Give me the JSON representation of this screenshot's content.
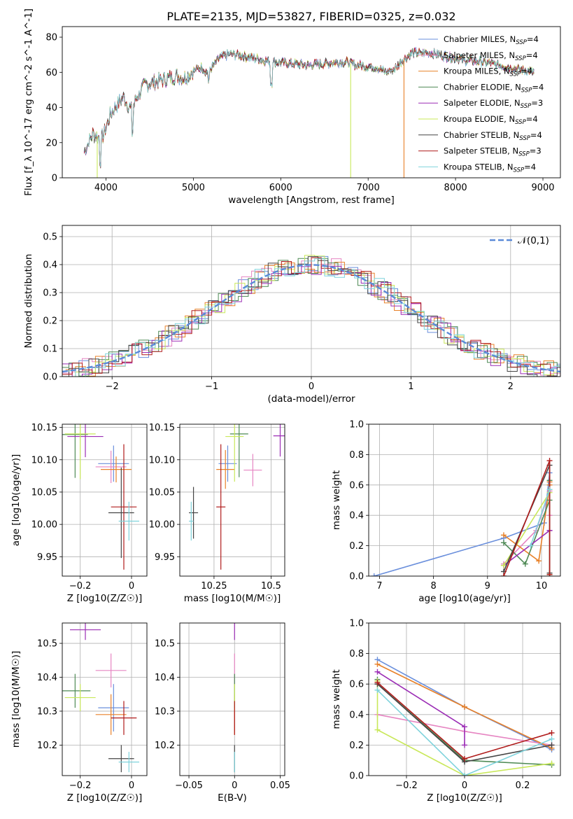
{
  "figure": {
    "title": "PLATE=2135, MJD=53827, FIBERID=0325, z=0.032"
  },
  "colors": {
    "chabrier_miles": "#6a8fdc",
    "salpeter_miles": "#e685c2",
    "kroupa_miles": "#e8822a",
    "chabrier_elodie": "#4e8a55",
    "salpeter_elodie": "#9b2db5",
    "kroupa_elodie": "#c9e85a",
    "chabrier_stelib": "#454545",
    "salpeter_stelib": "#b01c1c",
    "kroupa_stelib": "#7fd3dc",
    "normal_curve": "#5b8ad8"
  },
  "chart_data": [
    {
      "id": "spectrum",
      "type": "line",
      "title": "PLATE=2135, MJD=53827, FIBERID=0325, z=0.032",
      "xlabel": "wavelength [Angstrom, rest frame]",
      "ylabel": "Flux [f_λ 10^-17 erg cm^-2 s^-1 A^-1]",
      "xlim": [
        3500,
        9200
      ],
      "ylim": [
        0,
        86
      ],
      "xticks": [
        4000,
        5000,
        6000,
        7000,
        8000,
        9000
      ],
      "yticks": [
        0,
        20,
        40,
        60,
        80
      ],
      "grid": false,
      "legend_position": "top-right",
      "legend": [
        "Chabrier MILES, N_SSP=4",
        "Salpeter MILES, N_SSP=4",
        "Kroupa MILES, N_SSP=4",
        "Chabrier ELODIE, N_SSP=4",
        "Salpeter ELODIE, N_SSP=3",
        "Kroupa ELODIE, N_SSP=4",
        "Chabrier STELIB, N_SSP=4",
        "Salpeter STELIB, N_SSP=3",
        "Kroupa STELIB, N_SSP=4"
      ],
      "continuum": [
        [
          3750,
          15
        ],
        [
          3800,
          20
        ],
        [
          3850,
          25
        ],
        [
          3950,
          22
        ],
        [
          4000,
          28
        ],
        [
          4050,
          36
        ],
        [
          4100,
          40
        ],
        [
          4200,
          46
        ],
        [
          4300,
          38
        ],
        [
          4350,
          46
        ],
        [
          4450,
          53
        ],
        [
          4600,
          55
        ],
        [
          4800,
          58
        ],
        [
          4900,
          57
        ],
        [
          5000,
          61
        ],
        [
          5100,
          63
        ],
        [
          5150,
          60
        ],
        [
          5200,
          62
        ],
        [
          5300,
          68
        ],
        [
          5400,
          70
        ],
        [
          5500,
          70
        ],
        [
          5700,
          68
        ],
        [
          5900,
          66
        ],
        [
          6100,
          65
        ],
        [
          6300,
          64
        ],
        [
          6500,
          65
        ],
        [
          6700,
          66
        ],
        [
          6900,
          64
        ],
        [
          7100,
          63
        ],
        [
          7200,
          60
        ],
        [
          7300,
          62
        ],
        [
          7400,
          67
        ],
        [
          7500,
          71
        ],
        [
          7700,
          71
        ],
        [
          7900,
          69
        ],
        [
          8100,
          67
        ],
        [
          8300,
          66
        ],
        [
          8500,
          64
        ],
        [
          8700,
          62
        ],
        [
          8900,
          60
        ]
      ],
      "drops": [
        {
          "series": "Kroupa ELODIE, N_SSP=4",
          "x": 3900,
          "y_to": 0
        },
        {
          "series": "Kroupa ELODIE, N_SSP=4",
          "x": 6800,
          "y_to": 0
        },
        {
          "series": "Kroupa MILES, N_SSP=4",
          "x": 7410,
          "y_to": 0
        }
      ]
    },
    {
      "id": "residuals",
      "type": "line",
      "xlabel": "(data-model)/error",
      "ylabel": "Normed distribution",
      "xlim": [
        -2.5,
        2.5
      ],
      "ylim": [
        0,
        0.54
      ],
      "xticks": [
        -2,
        -1,
        0,
        1,
        2
      ],
      "yticks": [
        0.0,
        0.1,
        0.2,
        0.3,
        0.4,
        0.5
      ],
      "grid": true,
      "legend_position": "top-right",
      "curve_label": "𝒩(0,1)",
      "note": "nine step histograms, one per model, scattered around the standard normal curve"
    },
    {
      "id": "age_vs_Z",
      "type": "scatter",
      "xlabel": "Z [log10(Z/Z☉)]",
      "ylabel": "age [log10(age/yr)]",
      "xlim": [
        -0.27,
        0.06
      ],
      "ylim": [
        9.92,
        10.155
      ],
      "xticks": [
        -0.2,
        0.0
      ],
      "yticks": [
        9.95,
        10.0,
        10.05,
        10.1,
        10.15
      ],
      "grid": true,
      "points": [
        {
          "x": -0.07,
          "y": 10.094,
          "xerr": 0.06,
          "yerr": 0.028
        },
        {
          "x": -0.08,
          "y": 10.089,
          "xerr": 0.06,
          "yerr": 0.025
        },
        {
          "x": -0.06,
          "y": 10.085,
          "xerr": 0.06,
          "yerr": 0.02
        },
        {
          "x": -0.22,
          "y": 10.139,
          "xerr": 0.05,
          "yerr": 0.067
        },
        {
          "x": -0.18,
          "y": 10.136,
          "xerr": 0.07,
          "yerr": 0.032
        },
        {
          "x": -0.2,
          "y": 10.14,
          "xerr": 0.06,
          "yerr": 0.07
        },
        {
          "x": -0.04,
          "y": 10.018,
          "xerr": 0.05,
          "yerr": 0.07
        },
        {
          "x": -0.03,
          "y": 10.027,
          "xerr": 0.05,
          "yerr": 0.097
        },
        {
          "x": -0.01,
          "y": 10.005,
          "xerr": 0.04,
          "yerr": 0.03
        }
      ]
    },
    {
      "id": "age_vs_mass",
      "type": "scatter",
      "xlabel": "mass [log10(M/M☉)]",
      "ylabel": "",
      "xlim": [
        10.1,
        10.56
      ],
      "ylim": [
        9.92,
        10.155
      ],
      "xticks": [
        10.25,
        10.5
      ],
      "yticks": [
        9.95,
        10.0,
        10.05,
        10.1,
        10.15
      ],
      "grid": true,
      "points": [
        {
          "x": 10.31,
          "y": 10.094,
          "xerr": 0.04,
          "yerr": 0.028
        },
        {
          "x": 10.42,
          "y": 10.084,
          "xerr": 0.04,
          "yerr": 0.025
        },
        {
          "x": 10.3,
          "y": 10.085,
          "xerr": 0.04,
          "yerr": 0.03
        },
        {
          "x": 10.36,
          "y": 10.14,
          "xerr": 0.04,
          "yerr": 0.067
        },
        {
          "x": 10.54,
          "y": 10.137,
          "xerr": 0.03,
          "yerr": 0.032
        },
        {
          "x": 10.34,
          "y": 10.136,
          "xerr": 0.04,
          "yerr": 0.07
        },
        {
          "x": 10.16,
          "y": 10.018,
          "xerr": 0.02,
          "yerr": 0.04
        },
        {
          "x": 10.28,
          "y": 10.027,
          "xerr": 0.02,
          "yerr": 0.097
        },
        {
          "x": 10.15,
          "y": 10.005,
          "xerr": 0.01,
          "yerr": 0.03
        }
      ]
    },
    {
      "id": "weight_vs_age",
      "type": "line",
      "xlabel": "age [log10(age/yr)]",
      "ylabel": "mass weight",
      "xlim": [
        6.8,
        10.35
      ],
      "ylim": [
        0,
        1.0
      ],
      "xticks": [
        7,
        8,
        9,
        10
      ],
      "yticks": [
        0.0,
        0.2,
        0.4,
        0.6,
        0.8,
        1.0
      ],
      "grid": true,
      "series": [
        {
          "x": [
            6.9,
            9.3,
            10.05,
            10.15
          ],
          "y": [
            0.0,
            0.25,
            0.35,
            0.68
          ]
        },
        {
          "x": [
            9.3,
            9.9,
            10.15,
            10.15
          ],
          "y": [
            0.08,
            0.3,
            0.56,
            0.4
          ]
        },
        {
          "x": [
            9.3,
            9.95,
            10.15,
            10.15
          ],
          "y": [
            0.27,
            0.1,
            0.6,
            0.62
          ]
        },
        {
          "x": [
            9.3,
            9.7,
            10.15,
            10.15
          ],
          "y": [
            0.22,
            0.08,
            0.5,
            0.63
          ]
        },
        {
          "x": [
            9.3,
            10.15,
            10.15
          ],
          "y": [
            0.07,
            0.3,
            0.3
          ]
        },
        {
          "x": [
            9.3,
            10.15,
            10.15
          ],
          "y": [
            0.07,
            0.55,
            0.01
          ]
        },
        {
          "x": [
            9.3,
            10.15,
            10.15
          ],
          "y": [
            0.03,
            0.73,
            0.02
          ]
        },
        {
          "x": [
            9.3,
            10.15,
            10.15
          ],
          "y": [
            0.0,
            0.76,
            0.01
          ]
        },
        {
          "x": [
            9.8,
            10.15
          ],
          "y": [
            0.2,
            0.57
          ]
        }
      ]
    },
    {
      "id": "mass_vs_Z",
      "type": "scatter",
      "xlabel": "Z [log10(Z/Z☉)]",
      "ylabel": "mass [log10(M/M☉)]",
      "xlim": [
        -0.27,
        0.06
      ],
      "ylim": [
        10.11,
        10.56
      ],
      "xticks": [
        -0.2,
        0.0
      ],
      "yticks": [
        10.2,
        10.3,
        10.4,
        10.5
      ],
      "grid": true,
      "points": [
        {
          "x": -0.07,
          "y": 10.31,
          "xerr": 0.06,
          "yerr": 0.07
        },
        {
          "x": -0.08,
          "y": 10.42,
          "xerr": 0.06,
          "yerr": 0.05
        },
        {
          "x": -0.08,
          "y": 10.29,
          "xerr": 0.06,
          "yerr": 0.06
        },
        {
          "x": -0.22,
          "y": 10.36,
          "xerr": 0.06,
          "yerr": 0.05
        },
        {
          "x": -0.18,
          "y": 10.54,
          "xerr": 0.06,
          "yerr": 0.03
        },
        {
          "x": -0.2,
          "y": 10.34,
          "xerr": 0.06,
          "yerr": 0.04
        },
        {
          "x": -0.04,
          "y": 10.16,
          "xerr": 0.05,
          "yerr": 0.04
        },
        {
          "x": -0.03,
          "y": 10.28,
          "xerr": 0.05,
          "yerr": 0.05
        },
        {
          "x": -0.01,
          "y": 10.15,
          "xerr": 0.04,
          "yerr": 0.03
        }
      ]
    },
    {
      "id": "mass_vs_ebv",
      "type": "scatter",
      "xlabel": "E(B-V)",
      "ylabel": "",
      "xlim": [
        -0.06,
        0.055
      ],
      "ylim": [
        10.11,
        10.56
      ],
      "xticks": [
        -0.05,
        0.0,
        0.05
      ],
      "yticks": [
        10.2,
        10.3,
        10.4,
        10.5
      ],
      "grid": true,
      "points": [
        {
          "x": 0.0,
          "y": 10.31,
          "yerr": 0.07
        },
        {
          "x": 0.0,
          "y": 10.42,
          "yerr": 0.05
        },
        {
          "x": 0.0,
          "y": 10.29,
          "yerr": 0.06
        },
        {
          "x": 0.0,
          "y": 10.36,
          "yerr": 0.05
        },
        {
          "x": 0.0,
          "y": 10.54,
          "yerr": 0.03
        },
        {
          "x": 0.0,
          "y": 10.34,
          "yerr": 0.04
        },
        {
          "x": 0.0,
          "y": 10.16,
          "yerr": 0.04
        },
        {
          "x": 0.0,
          "y": 10.28,
          "yerr": 0.05
        },
        {
          "x": 0.0,
          "y": 10.15,
          "yerr": 0.03
        }
      ]
    },
    {
      "id": "weight_vs_Z",
      "type": "line",
      "xlabel": "Z [log10(Z/Z☉)]",
      "ylabel": "mass weight",
      "xlim": [
        -0.33,
        0.33
      ],
      "ylim": [
        0,
        1.0
      ],
      "xticks": [
        -0.2,
        0.0,
        0.2
      ],
      "yticks": [
        0.0,
        0.2,
        0.4,
        0.6,
        0.8,
        1.0
      ],
      "grid": true,
      "series": [
        {
          "x": [
            -0.3,
            0.0,
            0.3
          ],
          "y": [
            0.76,
            0.45,
            0.17
          ]
        },
        {
          "x": [
            -0.3,
            0.0,
            0.3
          ],
          "y": [
            0.4,
            0.29,
            0.2
          ]
        },
        {
          "x": [
            -0.3,
            0.0,
            0.3
          ],
          "y": [
            0.73,
            0.45,
            0.18
          ]
        },
        {
          "x": [
            -0.3,
            -0.3,
            0.0,
            0.3
          ],
          "y": [
            0.63,
            0.6,
            0.1,
            0.07
          ]
        },
        {
          "x": [
            -0.3,
            0.0,
            0.0
          ],
          "y": [
            0.68,
            0.32,
            0.2
          ]
        },
        {
          "x": [
            -0.3,
            -0.3,
            0.0,
            0.3
          ],
          "y": [
            0.62,
            0.3,
            0.0,
            0.08
          ]
        },
        {
          "x": [
            -0.3,
            0.0,
            0.3
          ],
          "y": [
            0.6,
            0.09,
            0.2
          ]
        },
        {
          "x": [
            -0.3,
            0.0,
            0.3
          ],
          "y": [
            0.61,
            0.11,
            0.28
          ]
        },
        {
          "x": [
            -0.3,
            0.0,
            0.3
          ],
          "y": [
            0.56,
            0.0,
            0.24
          ]
        }
      ]
    }
  ]
}
